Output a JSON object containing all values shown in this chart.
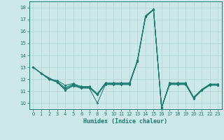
{
  "xlabel": "Humidex (Indice chaleur)",
  "xlim": [
    -0.5,
    23.5
  ],
  "ylim": [
    9.5,
    18.5
  ],
  "xticks": [
    0,
    1,
    2,
    3,
    4,
    5,
    6,
    7,
    8,
    9,
    10,
    11,
    12,
    13,
    14,
    15,
    16,
    17,
    18,
    19,
    20,
    21,
    22,
    23
  ],
  "yticks": [
    10,
    11,
    12,
    13,
    14,
    15,
    16,
    17,
    18
  ],
  "background_color": "#cce8e8",
  "line_color": "#1a7a6e",
  "grid_color": "#b0d4d4",
  "lines": [
    [
      13.0,
      12.5,
      12.0,
      11.75,
      11.1,
      11.45,
      11.25,
      11.25,
      10.0,
      11.55,
      11.55,
      11.55,
      11.55,
      13.5,
      17.2,
      17.8,
      9.6,
      11.55,
      11.55,
      11.55,
      10.4,
      11.05,
      11.5,
      11.5
    ],
    [
      13.0,
      12.5,
      12.0,
      11.9,
      11.5,
      11.65,
      11.35,
      11.35,
      10.7,
      11.65,
      11.65,
      11.65,
      11.65,
      13.6,
      17.3,
      17.85,
      9.65,
      11.65,
      11.65,
      11.65,
      10.5,
      11.15,
      11.6,
      11.6
    ],
    [
      13.0,
      12.5,
      12.1,
      11.75,
      11.2,
      11.55,
      11.3,
      11.3,
      10.7,
      11.6,
      11.6,
      11.6,
      11.6,
      13.55,
      17.25,
      17.82,
      9.62,
      11.6,
      11.6,
      11.6,
      10.45,
      11.1,
      11.55,
      11.55
    ],
    [
      13.0,
      12.5,
      12.1,
      11.8,
      11.3,
      11.6,
      11.4,
      11.4,
      10.8,
      11.7,
      11.7,
      11.7,
      11.7,
      13.58,
      17.28,
      17.84,
      9.64,
      11.7,
      11.7,
      11.7,
      10.48,
      11.12,
      11.58,
      11.58
    ],
    [
      13.0,
      12.5,
      12.0,
      11.8,
      11.1,
      11.5,
      11.3,
      11.3,
      10.7,
      11.6,
      11.6,
      11.6,
      11.6,
      13.5,
      17.2,
      17.8,
      9.6,
      11.6,
      11.6,
      11.6,
      10.4,
      11.1,
      11.5,
      11.5
    ]
  ]
}
